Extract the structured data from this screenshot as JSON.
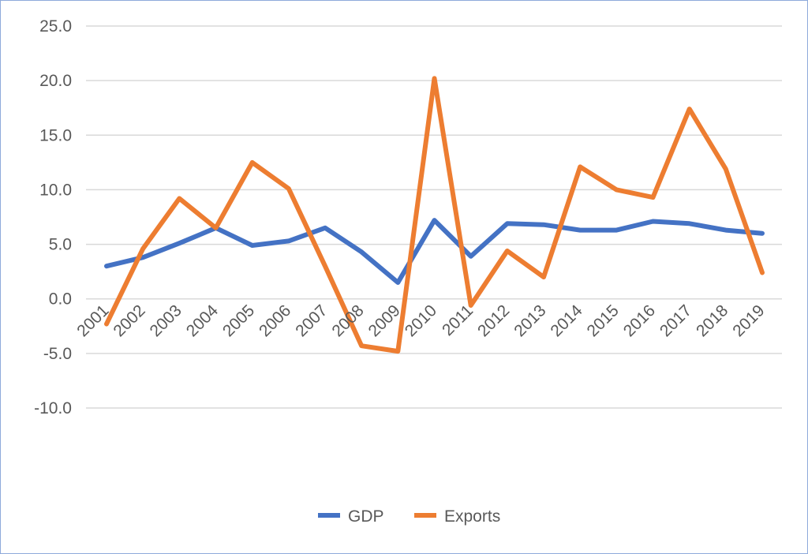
{
  "chart_data": {
    "type": "line",
    "title": "",
    "xlabel": "",
    "ylabel": "",
    "ylim": [
      -10,
      25
    ],
    "yticks": [
      25,
      20,
      15,
      10,
      5,
      0,
      -5,
      -10
    ],
    "ytick_labels": [
      "25.0",
      "20.0",
      "15.0",
      "10.0",
      "5.0",
      "0.0",
      "-5.0",
      "-10.0"
    ],
    "grid": true,
    "legend_position": "bottom",
    "categories": [
      "2001",
      "2002",
      "2003",
      "2004",
      "2005",
      "2006",
      "2007",
      "2008",
      "2009",
      "2010",
      "2011",
      "2012",
      "2013",
      "2014",
      "2015",
      "2016",
      "2017",
      "2018",
      "2019"
    ],
    "series": [
      {
        "name": "GDP",
        "color": "#4472c4",
        "values": [
          3.0,
          3.8,
          5.1,
          6.5,
          4.9,
          5.3,
          6.5,
          4.3,
          1.5,
          7.2,
          3.9,
          6.9,
          6.8,
          6.3,
          6.3,
          7.1,
          6.9,
          6.3,
          6.0
        ]
      },
      {
        "name": "Exports",
        "color": "#ed7d31",
        "values": [
          -2.3,
          4.6,
          9.2,
          6.5,
          12.5,
          10.1,
          3.0,
          -4.3,
          -4.8,
          20.2,
          -0.6,
          4.4,
          2.0,
          12.1,
          10.0,
          9.3,
          17.4,
          11.9,
          2.4
        ]
      }
    ]
  }
}
